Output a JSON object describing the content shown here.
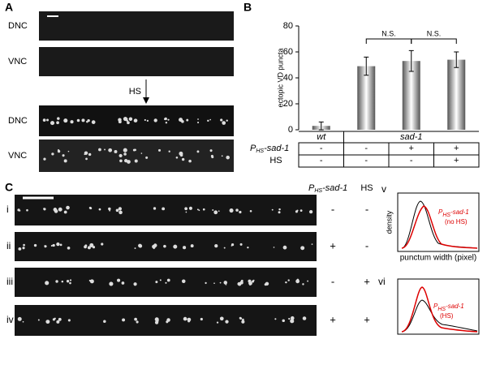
{
  "panel_labels": [
    "A",
    "B",
    "C"
  ],
  "panel_a": {
    "rows": [
      "DNC",
      "VNC",
      "DNC",
      "VNC"
    ],
    "arrow_label": "HS"
  },
  "chart_data": {
    "type": "bar",
    "ylabel": "ectopic VD puncta",
    "categories": [
      "wt",
      null,
      "sad-1",
      null
    ],
    "values": [
      3,
      49,
      53,
      54
    ],
    "errors": [
      3,
      7,
      8,
      6
    ],
    "ylim": [
      0,
      80
    ],
    "yticks": [
      0,
      20,
      40,
      60,
      80
    ],
    "annotations": [
      "N.S.",
      "N.S."
    ],
    "table": [
      {
        "label": {
          "main": "P",
          "sub": "HS",
          "rest": "-sad-1"
        },
        "cells": [
          "-",
          "-",
          "+",
          "+"
        ]
      },
      {
        "label": "HS",
        "cells": [
          "-",
          "-",
          "-",
          "+"
        ]
      }
    ]
  },
  "panel_c": {
    "headers": [
      {
        "main": "P",
        "sub": "HS",
        "rest": "-sad-1"
      },
      "HS"
    ],
    "rows": [
      {
        "label": "i",
        "cells": [
          "-",
          "-"
        ]
      },
      {
        "label": "ii",
        "cells": [
          "+",
          "-"
        ]
      },
      {
        "label": "iii",
        "cells": [
          "-",
          "+"
        ]
      },
      {
        "label": "iv",
        "cells": [
          "+",
          "+"
        ]
      }
    ]
  },
  "panel_v": {
    "label": "v",
    "ylabel": "density",
    "xlabel": "punctum width (pixel)",
    "legend": {
      "main": "P",
      "sub": "HS",
      "rest": "-sad-1",
      "note": "(no HS)"
    }
  },
  "panel_vi": {
    "label": "vi",
    "legend": {
      "main": "P",
      "sub": "HS",
      "rest": "-sad-1",
      "note": "(HS)"
    }
  }
}
